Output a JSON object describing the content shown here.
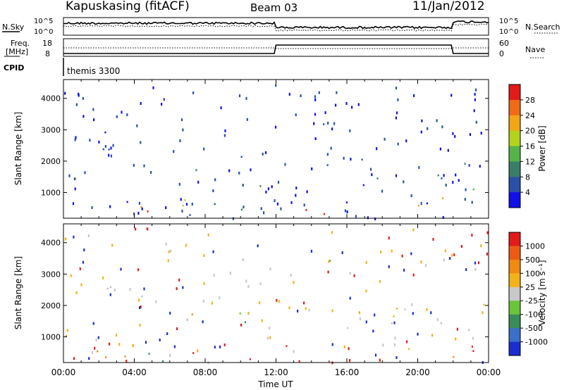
{
  "header": {
    "station": "Kapuskasing (fitACF)",
    "beam": "Beam 03",
    "date": "11/Jan/2012"
  },
  "status_panel": {
    "nsky_label": "N.Sky",
    "nsky_ticks": [
      "10^5",
      "10^0"
    ],
    "nsearch_label": "N.Search",
    "nsearch_ticks": [
      "10^5",
      "10^0"
    ],
    "freq_label_1": "Freq.",
    "freq_label_2": "[MHz]",
    "freq_ticks": [
      "18",
      "8"
    ],
    "nave_label": "Nave",
    "nave_ticks": [
      "60",
      "0"
    ],
    "cpid_label": "CPID",
    "cpid_value": "themis 3300"
  },
  "chart_data": [
    {
      "type": "heatmap",
      "name": "power",
      "ylabel": "Slant Range [km]",
      "xlabel": "",
      "colorbar_label": "Power [dB]",
      "colorbar_ticks": [
        "4",
        "8",
        "12",
        "16",
        "20",
        "24",
        "28"
      ],
      "colorbar_colors": [
        "#1010e8",
        "#2a50a8",
        "#3a7e6a",
        "#56b34a",
        "#b5d21f",
        "#f2a615",
        "#ee6b18",
        "#e21a1a"
      ],
      "ylim": [
        180,
        4600
      ],
      "y_ticks": [
        "1000",
        "2000",
        "3000",
        "4000"
      ],
      "scatter_regions": [
        {
          "t0": 0.0,
          "t1": 1.4,
          "r0": 650,
          "r1": 1750,
          "fill": [
            "#3a7e6a",
            "#56b34a",
            "#b5d21f",
            "#f2a615",
            "#ee6b18"
          ]
        },
        {
          "t0": 1.2,
          "t1": 1.8,
          "r0": 1500,
          "r1": 2400,
          "fill": [
            "#2a50a8",
            "#3a7e6a",
            "#56b34a"
          ]
        },
        {
          "t0": 2.2,
          "t1": 5.2,
          "r0": 2050,
          "r1": 3000,
          "fill": [
            "#1010e8",
            "#2a50a8",
            "#2a50a8",
            "#3a7e6a"
          ]
        },
        {
          "t0": 7.0,
          "t1": 7.8,
          "r0": 1150,
          "r1": 1900,
          "fill": [
            "#2a50a8",
            "#3a7e6a"
          ]
        },
        {
          "t0": 8.6,
          "t1": 9.2,
          "r0": 1800,
          "r1": 2200,
          "fill": [
            "#2a50a8",
            "#1010e8"
          ]
        },
        {
          "t0": 10.0,
          "t1": 11.8,
          "r0": 1200,
          "r1": 2350,
          "fill": [
            "#2a50a8",
            "#3a7e6a",
            "#1010e8"
          ]
        },
        {
          "t0": 13.8,
          "t1": 14.3,
          "r0": 900,
          "r1": 1800,
          "fill": [
            "#ee6b18",
            "#e21a1a",
            "#f2a615"
          ]
        },
        {
          "t0": 14.3,
          "t1": 22.0,
          "r0": 1200,
          "r1": 2100,
          "fill": [
            "#1010e8",
            "#2a50a8",
            "#2a50a8",
            "#3a7e6a"
          ]
        },
        {
          "t0": 14.5,
          "t1": 15.3,
          "r0": 2700,
          "r1": 3500,
          "fill": [
            "#3a7e6a",
            "#2a50a8",
            "#56b34a"
          ]
        },
        {
          "t0": 22.0,
          "t1": 24.0,
          "r0": 1100,
          "r1": 2100,
          "fill": [
            "#3a7e6a",
            "#56b34a",
            "#b5d21f",
            "#f2a615"
          ]
        },
        {
          "t0": 0.0,
          "t1": 24.0,
          "r0": 200,
          "r1": 850,
          "fill": [
            "#1010e8",
            "#2a50a8",
            "#3a7e6a",
            "#56b34a",
            "#b5d21f",
            "#f2a615",
            "#e21a1a"
          ]
        },
        {
          "t0": 0.0,
          "t1": 24.0,
          "r0": 200,
          "r1": 4500,
          "sparse": true,
          "fill": [
            "#1010e8",
            "#2a50a8"
          ]
        }
      ]
    },
    {
      "type": "heatmap",
      "name": "velocity",
      "ylabel": "Slant Range [km]",
      "xlabel": "Time UT",
      "colorbar_label": "Velocity [m s⁻¹]",
      "colorbar_ticks": [
        "1000",
        "500",
        "100",
        "25",
        "-25",
        "-100",
        "-500",
        "-1000"
      ],
      "colorbar_colors": [
        "#1a2ed0",
        "#3b6fc8",
        "#3a8c5a",
        "#6cc43a",
        "#c8c8c8",
        "#f2b21a",
        "#f08a12",
        "#ee5a12",
        "#e21a1a"
      ],
      "ylim": [
        180,
        4600
      ],
      "y_ticks": [
        "1000",
        "2000",
        "3000",
        "4000"
      ],
      "x_ticks": [
        "00:00",
        "04:00",
        "08:00",
        "12:00",
        "16:00",
        "20:00",
        "00:00"
      ],
      "xlim": [
        0,
        24
      ],
      "scatter_regions": [
        {
          "t0": 0.0,
          "t1": 1.4,
          "r0": 650,
          "r1": 1750,
          "fill": [
            "#f08a12",
            "#f2b21a",
            "#ee5a12",
            "#f08a12"
          ]
        },
        {
          "t0": 2.2,
          "t1": 5.2,
          "r0": 2050,
          "r1": 3000,
          "fill": [
            "#c8c8c8",
            "#c8c8c8",
            "#bdbdbd"
          ]
        },
        {
          "t0": 7.0,
          "t1": 7.8,
          "r0": 1150,
          "r1": 1900,
          "fill": [
            "#f2b21a",
            "#f08a12"
          ]
        },
        {
          "t0": 9.8,
          "t1": 11.6,
          "r0": 1250,
          "r1": 2350,
          "fill": [
            "#6cc43a",
            "#3a8c5a",
            "#6cc43a",
            "#f2b21a"
          ]
        },
        {
          "t0": 14.5,
          "t1": 15.3,
          "r0": 2700,
          "r1": 3500,
          "fill": [
            "#3a8c5a",
            "#6cc43a"
          ]
        },
        {
          "t0": 14.3,
          "t1": 24.0,
          "r0": 1200,
          "r1": 2100,
          "fill": [
            "#c8c8c8",
            "#c8c8c8",
            "#bdbdbd",
            "#f2b21a"
          ]
        },
        {
          "t0": 0.0,
          "t1": 24.0,
          "r0": 200,
          "r1": 850,
          "fill": [
            "#c8c8c8",
            "#f2b21a",
            "#e21a1a",
            "#3a8c5a",
            "#1a2ed0",
            "#f08a12"
          ]
        },
        {
          "t0": 0.0,
          "t1": 24.0,
          "r0": 200,
          "r1": 4500,
          "sparse": true,
          "fill": [
            "#c8c8c8",
            "#f2b21a",
            "#e21a1a",
            "#1a2ed0"
          ]
        }
      ]
    }
  ]
}
